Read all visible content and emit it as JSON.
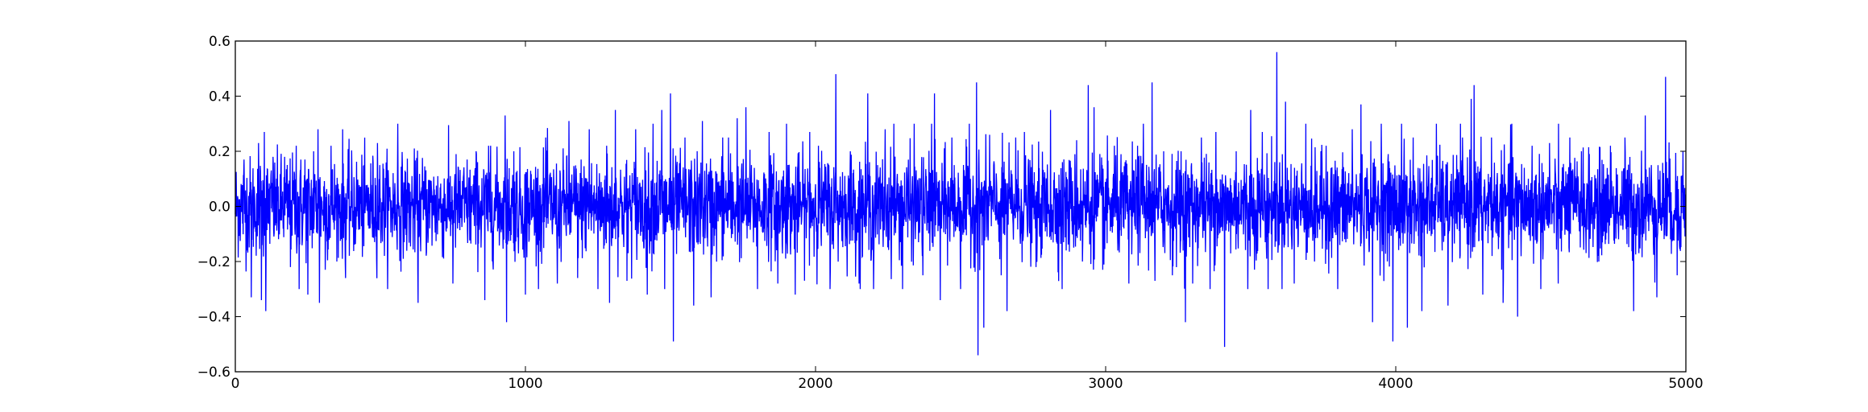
{
  "chart_data": {
    "type": "line",
    "title": "",
    "xlabel": "",
    "ylabel": "",
    "xlim": [
      0,
      5000
    ],
    "ylim": [
      -0.6,
      0.6
    ],
    "x_ticks": [
      0,
      1000,
      2000,
      3000,
      4000,
      5000
    ],
    "x_tick_labels": [
      "0",
      "1000",
      "2000",
      "3000",
      "4000",
      "5000"
    ],
    "y_ticks": [
      0.6,
      0.4,
      0.2,
      0.0,
      -0.2,
      -0.4,
      -0.6
    ],
    "y_tick_labels": [
      "0.6",
      "0.4",
      "0.2",
      "0.0",
      "−0.2",
      "−0.4",
      "−0.6"
    ],
    "grid": false,
    "legend": false,
    "line_color": "#0000ff",
    "series": [
      {
        "x_start": 0,
        "x_step": 1,
        "n_points": 5000,
        "mean": 0.0,
        "std": 0.09,
        "peaks": [
          [
            30,
            0.17
          ],
          [
            55,
            -0.33
          ],
          [
            80,
            0.23
          ],
          [
            90,
            -0.34
          ],
          [
            100,
            0.27
          ],
          [
            105,
            -0.38
          ],
          [
            130,
            0.18
          ],
          [
            170,
            0.18
          ],
          [
            190,
            -0.22
          ],
          [
            210,
            0.22
          ],
          [
            220,
            -0.3
          ],
          [
            240,
            0.17
          ],
          [
            250,
            -0.32
          ],
          [
            270,
            0.2
          ],
          [
            285,
            0.28
          ],
          [
            290,
            -0.35
          ],
          [
            310,
            -0.23
          ],
          [
            330,
            0.22
          ],
          [
            350,
            -0.2
          ],
          [
            370,
            0.28
          ],
          [
            380,
            -0.26
          ],
          [
            490,
            0.23
          ],
          [
            560,
            0.3
          ],
          [
            630,
            -0.35
          ],
          [
            750,
            -0.28
          ],
          [
            830,
            0.2
          ],
          [
            860,
            -0.34
          ],
          [
            880,
            0.22
          ],
          [
            930,
            0.33
          ],
          [
            935,
            -0.42
          ],
          [
            960,
            0.2
          ],
          [
            1000,
            -0.32
          ],
          [
            1070,
            0.25
          ],
          [
            1110,
            -0.28
          ],
          [
            1150,
            0.31
          ],
          [
            1180,
            -0.26
          ],
          [
            1220,
            0.28
          ],
          [
            1250,
            -0.3
          ],
          [
            1280,
            0.22
          ],
          [
            1290,
            -0.35
          ],
          [
            1310,
            0.35
          ],
          [
            1350,
            -0.27
          ],
          [
            1380,
            0.28
          ],
          [
            1420,
            -0.32
          ],
          [
            1440,
            0.3
          ],
          [
            1470,
            0.35
          ],
          [
            1480,
            -0.3
          ],
          [
            1500,
            0.41
          ],
          [
            1510,
            -0.49
          ],
          [
            1550,
            0.25
          ],
          [
            1580,
            -0.36
          ],
          [
            1610,
            0.31
          ],
          [
            1640,
            -0.33
          ],
          [
            1680,
            0.25
          ],
          [
            1700,
            0.25
          ],
          [
            1730,
            0.32
          ],
          [
            1760,
            0.36
          ],
          [
            1800,
            -0.3
          ],
          [
            1840,
            0.27
          ],
          [
            1870,
            -0.28
          ],
          [
            1900,
            0.3
          ],
          [
            1930,
            -0.32
          ],
          [
            1980,
            0.27
          ],
          [
            2010,
            0.22
          ],
          [
            2050,
            -0.3
          ],
          [
            2070,
            0.48
          ],
          [
            2120,
            0.2
          ],
          [
            2150,
            -0.28
          ],
          [
            2180,
            0.41
          ],
          [
            2200,
            -0.3
          ],
          [
            2240,
            0.28
          ],
          [
            2270,
            0.3
          ],
          [
            2300,
            -0.3
          ],
          [
            2340,
            0.3
          ],
          [
            2370,
            -0.25
          ],
          [
            2400,
            0.3
          ],
          [
            2410,
            0.41
          ],
          [
            2430,
            -0.34
          ],
          [
            2470,
            0.25
          ],
          [
            2500,
            -0.3
          ],
          [
            2530,
            0.3
          ],
          [
            2555,
            0.45
          ],
          [
            2560,
            -0.54
          ],
          [
            2580,
            -0.44
          ],
          [
            2600,
            0.26
          ],
          [
            2640,
            -0.25
          ],
          [
            2660,
            -0.38
          ],
          [
            2690,
            0.25
          ],
          [
            2720,
            0.27
          ],
          [
            2760,
            -0.22
          ],
          [
            2810,
            0.35
          ],
          [
            2850,
            -0.3
          ],
          [
            2900,
            0.24
          ],
          [
            2920,
            -0.2
          ],
          [
            2940,
            0.44
          ],
          [
            2960,
            0.36
          ],
          [
            2990,
            -0.23
          ],
          [
            3030,
            0.22
          ],
          [
            3080,
            -0.28
          ],
          [
            3110,
            0.22
          ],
          [
            3130,
            0.3
          ],
          [
            3160,
            0.45
          ],
          [
            3170,
            -0.27
          ],
          [
            3200,
            0.2
          ],
          [
            3230,
            -0.25
          ],
          [
            3260,
            0.2
          ],
          [
            3275,
            -0.42
          ],
          [
            3300,
            -0.28
          ],
          [
            3330,
            0.25
          ],
          [
            3360,
            -0.3
          ],
          [
            3380,
            0.27
          ],
          [
            3410,
            -0.51
          ],
          [
            3450,
            0.2
          ],
          [
            3490,
            -0.3
          ],
          [
            3500,
            0.35
          ],
          [
            3540,
            0.27
          ],
          [
            3560,
            -0.3
          ],
          [
            3590,
            0.56
          ],
          [
            3620,
            0.38
          ],
          [
            3650,
            -0.28
          ],
          [
            3690,
            0.3
          ],
          [
            3720,
            -0.2
          ],
          [
            3760,
            0.22
          ],
          [
            3800,
            -0.3
          ],
          [
            3850,
            0.28
          ],
          [
            3880,
            0.37
          ],
          [
            3920,
            -0.42
          ],
          [
            3950,
            0.3
          ],
          [
            3990,
            -0.49
          ],
          [
            4020,
            0.3
          ],
          [
            4040,
            -0.44
          ],
          [
            4060,
            0.25
          ],
          [
            4090,
            -0.38
          ],
          [
            4140,
            0.3
          ],
          [
            4180,
            -0.36
          ],
          [
            4230,
            0.25
          ],
          [
            4260,
            0.39
          ],
          [
            4270,
            0.44
          ],
          [
            4300,
            -0.32
          ],
          [
            4330,
            0.25
          ],
          [
            4370,
            -0.35
          ],
          [
            4400,
            0.3
          ],
          [
            4420,
            -0.4
          ],
          [
            4470,
            0.22
          ],
          [
            4500,
            -0.3
          ],
          [
            4530,
            0.23
          ],
          [
            4560,
            -0.28
          ],
          [
            4600,
            0.25
          ],
          [
            4640,
            0.2
          ],
          [
            4700,
            -0.2
          ],
          [
            4740,
            0.22
          ],
          [
            4790,
            0.25
          ],
          [
            4820,
            -0.38
          ],
          [
            4860,
            0.33
          ],
          [
            4900,
            -0.33
          ],
          [
            4930,
            0.47
          ],
          [
            4970,
            -0.25
          ],
          [
            4990,
            0.2
          ]
        ]
      }
    ]
  }
}
